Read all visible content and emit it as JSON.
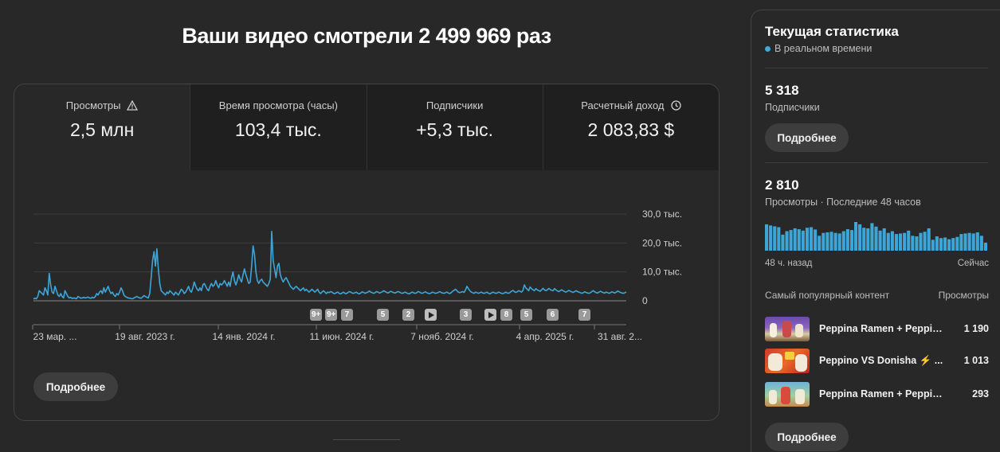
{
  "header": {
    "title": "Ваши видео смотрели 2 499 969 раз"
  },
  "tabs": [
    {
      "label": "Просмотры",
      "value": "2,5 млн",
      "icon": "warning-icon"
    },
    {
      "label": "Время просмотра (часы)",
      "value": "103,4 тыс."
    },
    {
      "label": "Подписчики",
      "value": "+5,3 тыс."
    },
    {
      "label": "Расчетный доход",
      "value": "2 083,83 $",
      "icon": "clock-icon"
    }
  ],
  "chart_data": {
    "type": "line",
    "y_ticks": [
      "30,0 тыс.",
      "20,0 тыс.",
      "10,0 тыс.",
      "0"
    ],
    "ylim": [
      0,
      30000
    ],
    "x_ticks": [
      "23 мар. ...",
      "19 авг. 2023 г.",
      "14 янв. 2024 г.",
      "11 июн. 2024 г.",
      "7 нояб. 2024 г.",
      "4 апр. 2025 г.",
      "31 авг. 2..."
    ],
    "series_color": "#3ea6d6",
    "values": [
      600,
      900,
      700,
      1500,
      3500,
      3000,
      2500,
      2000,
      4500,
      3500,
      2000,
      9500,
      5500,
      3000,
      2500,
      5000,
      3500,
      2000,
      1500,
      2500,
      1500,
      1000,
      3500,
      2500,
      1500,
      1000,
      1200,
      800,
      1000,
      900,
      700,
      1500,
      1200,
      900,
      1000,
      1200,
      1000,
      1100,
      1300,
      1000,
      900,
      1200,
      1000,
      1400,
      2500,
      2000,
      3000,
      3500,
      2500,
      4500,
      3000,
      4000,
      5000,
      3500,
      2500,
      3000,
      2000,
      1500,
      2500,
      2000,
      3000,
      4500,
      3500,
      2000,
      1500,
      1200,
      1000,
      900,
      800,
      700,
      1000,
      1200,
      1500,
      1200,
      1000,
      900,
      1300,
      1800,
      1500,
      1200,
      1000,
      2500,
      8000,
      14000,
      17000,
      12000,
      18000,
      11000,
      6000,
      3500,
      3000,
      2500,
      2000,
      3000,
      2500,
      3500,
      3000,
      2500,
      2000,
      3000,
      2500,
      2000,
      3000,
      4000,
      3500,
      2500,
      3000,
      4000,
      5000,
      3500,
      3000,
      4500,
      6500,
      5000,
      4000,
      3500,
      4500,
      3500,
      5500,
      6000,
      5000,
      4000,
      3500,
      5000,
      6000,
      5000,
      5500,
      7000,
      5500,
      4500,
      6000,
      5500,
      6000,
      7000,
      6000,
      5000,
      6500,
      5000,
      8000,
      10000,
      7000,
      5500,
      7000,
      9000,
      7500,
      6500,
      9000,
      11000,
      9000,
      7500,
      6000,
      6500,
      12000,
      19000,
      16000,
      10000,
      7000,
      6000,
      7000,
      7500,
      6500,
      6000,
      5500,
      5000,
      6000,
      7500,
      24000,
      14000,
      11000,
      8000,
      12000,
      13000,
      9000,
      7500,
      6500,
      7500,
      8000,
      7000,
      6000,
      5000,
      4500,
      4000,
      4500,
      5000,
      4500,
      4000,
      3500,
      4000,
      4500,
      3500,
      4000,
      3500,
      3000,
      3500,
      4000,
      3500,
      3000,
      3500,
      4000,
      3000,
      2500,
      3000,
      3500,
      3000,
      2500,
      3000,
      2800,
      3200,
      3000,
      2600,
      2500,
      2800,
      3000,
      2600,
      2400,
      2700,
      3000,
      2600,
      2500,
      2800,
      3200,
      3000,
      2700,
      2600,
      2800,
      3000,
      2600,
      2400,
      2700,
      3100,
      2900,
      2600,
      2800,
      3000,
      3400,
      3000,
      2800,
      2600,
      2800,
      3200,
      3000,
      2700,
      2900,
      3100,
      3500,
      3200,
      2900,
      2700,
      3000,
      3300,
      3000,
      2800,
      2700,
      3000,
      3200,
      3000,
      2700,
      2600,
      2800,
      3000,
      2700,
      2500,
      2400,
      2800,
      3000,
      2700,
      2600,
      2800,
      3200,
      3000,
      2700,
      2600,
      2900,
      3100,
      2800,
      2600,
      2500,
      2700,
      3000,
      2800,
      2600,
      2700,
      2900,
      3200,
      2900,
      2700,
      2600,
      2800,
      3000,
      2700,
      2500,
      2800,
      3300,
      3600,
      4000,
      3500,
      3000,
      2800,
      3000,
      3200,
      2900,
      3800,
      5000,
      4200,
      3500,
      3000,
      2800,
      2600,
      3000,
      2800,
      2600,
      2800,
      3000,
      2700,
      2600,
      2800,
      3000,
      2600,
      2400,
      2700,
      3000,
      2800,
      2600,
      2700,
      3000,
      2800,
      2600,
      2500,
      2700,
      3000,
      2700,
      2600,
      2900,
      3300,
      3600,
      3200,
      2900,
      3100,
      3500,
      3300,
      3000,
      3600,
      5500,
      4500,
      4000,
      3500,
      4800,
      4200,
      3800,
      3500,
      4200,
      3800,
      3500,
      3300,
      3800,
      4300,
      3800,
      3500,
      3800,
      4300,
      3900,
      3600,
      3500,
      4200,
      3800,
      3400,
      3200,
      3500,
      3800,
      3500,
      3200,
      3000,
      3300,
      3600,
      3300,
      3100,
      2900,
      3200,
      3500,
      3200,
      3000,
      2800,
      2600,
      2800,
      3100,
      2900,
      2700,
      2600,
      2800,
      3200,
      3500,
      3100,
      2800,
      2700,
      3000,
      3300,
      3000,
      2800,
      2700,
      3000,
      2800,
      2600,
      2800,
      3100,
      2900,
      2700,
      3000,
      3400,
      3100,
      2900,
      2700,
      2600,
      2800,
      3000
    ]
  },
  "markers": [
    "9+",
    "9+",
    "7",
    "5",
    "2",
    "",
    "3",
    "",
    "8",
    "5",
    "6",
    "7"
  ],
  "main_more_button": "Подробнее",
  "realtime": {
    "title": "Текущая статистика",
    "live_label": "В реальном времени",
    "subscribers_value": "5 318",
    "subscribers_label": "Подписчики",
    "more_button": "Подробнее",
    "views_value": "2 810",
    "views_label": "Просмотры · Последние 48 часов",
    "bars": [
      92,
      88,
      85,
      82,
      56,
      68,
      72,
      78,
      75,
      70,
      80,
      82,
      74,
      52,
      62,
      64,
      66,
      62,
      60,
      68,
      75,
      72,
      100,
      92,
      80,
      78,
      96,
      84,
      70,
      78,
      62,
      68,
      58,
      60,
      62,
      70,
      52,
      50,
      62,
      66,
      78,
      38,
      50,
      44,
      46,
      40,
      44,
      48,
      58,
      60,
      62,
      60,
      64,
      52,
      28
    ],
    "axis_left": "48 ч. назад",
    "axis_right": "Сейчас",
    "popular_header_left": "Самый популярный контент",
    "popular_header_right": "Просмотры",
    "popular": [
      {
        "title": "Peppina Ramen + Peppin...",
        "views": "1 190"
      },
      {
        "title": "Peppino VS Donisha ⚡ ...",
        "views": "1 013"
      },
      {
        "title": "Peppina Ramen + Peppino ...",
        "views": "293"
      }
    ],
    "more_button_2": "Подробнее"
  }
}
